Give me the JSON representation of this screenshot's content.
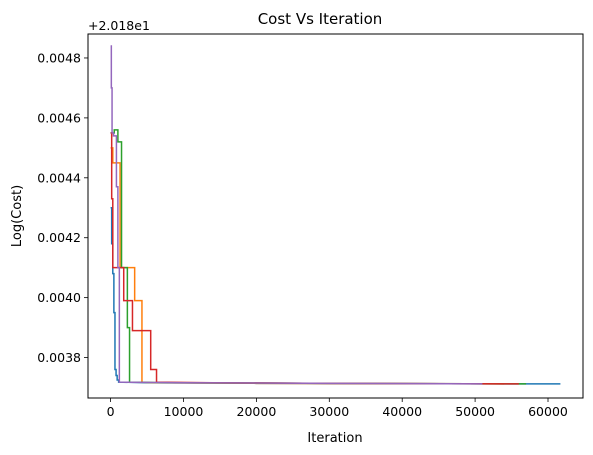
{
  "chart_data": {
    "type": "line",
    "title": "Cost Vs Iteration",
    "xlabel": "Iteration",
    "ylabel": "Log(Cost)",
    "y_offset_label": "+2.018e1",
    "xlim": [
      -3100,
      64800
    ],
    "ylim": [
      0.003665,
      0.00488
    ],
    "x_ticks": [
      0,
      10000,
      20000,
      30000,
      40000,
      50000,
      60000
    ],
    "x_tick_labels": [
      "0",
      "10000",
      "20000",
      "30000",
      "40000",
      "50000",
      "60000"
    ],
    "y_ticks": [
      0.0038,
      0.004,
      0.0042,
      0.0044,
      0.0046,
      0.0048
    ],
    "y_tick_labels": [
      "0.0038",
      "0.0040",
      "0.0042",
      "0.0044",
      "0.0046",
      "0.0048"
    ],
    "grid": false,
    "legend": false,
    "series": [
      {
        "color": "#1f77b4",
        "x": [
          0,
          150,
          150,
          300,
          300,
          450,
          450,
          600,
          600,
          750,
          750,
          900,
          900,
          1100,
          1100,
          5000,
          20000,
          61700
        ],
        "y": [
          0.0043,
          0.0043,
          0.00418,
          0.00418,
          0.00408,
          0.00408,
          0.00395,
          0.00395,
          0.00376,
          0.00376,
          0.00374,
          0.00374,
          0.003725,
          0.003725,
          0.003718,
          0.003716,
          0.003714,
          0.003712
        ]
      },
      {
        "color": "#ff7f0e",
        "x": [
          0,
          300,
          300,
          1300,
          1300,
          1800,
          1800,
          3300,
          3300,
          4300,
          4300,
          6000,
          20000,
          54000
        ],
        "y": [
          0.0045,
          0.0045,
          0.00445,
          0.00445,
          0.0041,
          0.0041,
          0.0041,
          0.0041,
          0.00399,
          0.00399,
          0.003718,
          0.003716,
          0.003714,
          0.003712
        ]
      },
      {
        "color": "#2ca02c",
        "x": [
          0,
          500,
          500,
          1000,
          1000,
          1500,
          1500,
          2300,
          2300,
          2600,
          2600,
          8000,
          30000,
          57000
        ],
        "y": [
          0.00455,
          0.00455,
          0.00456,
          0.00456,
          0.00452,
          0.00452,
          0.0041,
          0.0041,
          0.0039,
          0.0039,
          0.003718,
          0.003716,
          0.003714,
          0.003712
        ]
      },
      {
        "color": "#d62728",
        "x": [
          0,
          150,
          150,
          300,
          300,
          500,
          500,
          1800,
          1800,
          2200,
          2200,
          3000,
          3000,
          5500,
          5500,
          6300,
          6300,
          14000,
          30000,
          56000
        ],
        "y": [
          0.00455,
          0.00455,
          0.00433,
          0.00433,
          0.0041,
          0.0041,
          0.0041,
          0.0041,
          0.00399,
          0.00399,
          0.00399,
          0.00399,
          0.00389,
          0.00389,
          0.00376,
          0.00376,
          0.003718,
          0.003716,
          0.003714,
          0.003712
        ]
      },
      {
        "color": "#9467bd",
        "x": [
          0,
          100,
          100,
          200,
          200,
          400,
          400,
          600,
          600,
          800,
          800,
          1000,
          1000,
          1200,
          1200,
          10000,
          30000,
          51000
        ],
        "y": [
          0.00484,
          0.00484,
          0.0047,
          0.0047,
          0.00455,
          0.00455,
          0.00454,
          0.00454,
          0.00454,
          0.00454,
          0.00437,
          0.00437,
          0.0041,
          0.0041,
          0.003718,
          0.003716,
          0.003714,
          0.003712
        ]
      }
    ]
  }
}
